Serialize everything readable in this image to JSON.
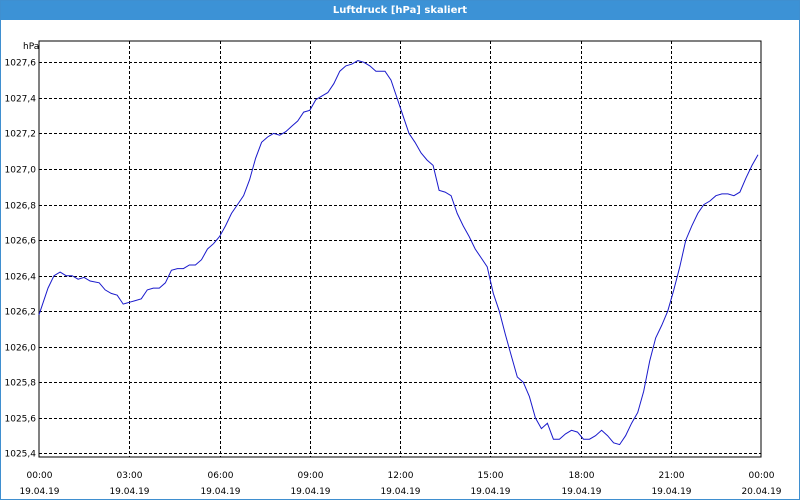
{
  "window": {
    "title": "Luftdruck [hPa] skaliert"
  },
  "colors": {
    "titlebar": "#3c92d6",
    "line": "#1a1acc",
    "grid": "#000000"
  },
  "chart_data": {
    "type": "line",
    "title": "Luftdruck [hPa] skaliert",
    "ylabel": "hPa",
    "xlabel": "",
    "grid": true,
    "ylim": [
      1025.38,
      1027.72
    ],
    "xlim_hours": [
      0,
      24
    ],
    "y_ticks": [
      "1025,4",
      "1025,6",
      "1025,8",
      "1026,0",
      "1026,2",
      "1026,4",
      "1026,6",
      "1026,8",
      "1027,0",
      "1027,2",
      "1027,4",
      "1027,6"
    ],
    "y_tick_values": [
      1025.4,
      1025.6,
      1025.8,
      1026.0,
      1026.2,
      1026.4,
      1026.6,
      1026.8,
      1027.0,
      1027.2,
      1027.4,
      1027.6
    ],
    "x_ticks": [
      {
        "time": "00:00",
        "date": "19.04.19",
        "hour": 0
      },
      {
        "time": "03:00",
        "date": "19.04.19",
        "hour": 3
      },
      {
        "time": "06:00",
        "date": "19.04.19",
        "hour": 6
      },
      {
        "time": "09:00",
        "date": "19.04.19",
        "hour": 9
      },
      {
        "time": "12:00",
        "date": "19.04.19",
        "hour": 12
      },
      {
        "time": "15:00",
        "date": "19.04.19",
        "hour": 15
      },
      {
        "time": "18:00",
        "date": "19.04.19",
        "hour": 18
      },
      {
        "time": "21:00",
        "date": "19.04.19",
        "hour": 21
      },
      {
        "time": "00:00",
        "date": "20.04.19",
        "hour": 24
      }
    ],
    "series": [
      {
        "x": [
          0.0,
          0.3,
          0.5,
          0.7,
          0.9,
          1.1,
          1.3,
          1.5,
          1.7,
          2.0,
          2.2,
          2.4,
          2.6,
          2.8,
          3.0,
          3.2,
          3.4,
          3.6,
          3.8,
          4.0,
          4.2,
          4.4,
          4.6,
          4.8,
          5.0,
          5.2,
          5.4,
          5.6,
          5.8,
          6.0,
          6.2,
          6.4,
          6.6,
          6.8,
          7.0,
          7.2,
          7.4,
          7.6,
          7.8,
          8.0,
          8.2,
          8.4,
          8.6,
          8.8,
          9.0,
          9.2,
          9.4,
          9.6,
          9.8,
          10.0,
          10.2,
          10.4,
          10.6,
          10.8,
          11.0,
          11.2,
          11.5,
          11.7,
          11.9,
          12.1,
          12.3,
          12.5,
          12.7,
          12.9,
          13.1,
          13.3,
          13.5,
          13.7,
          13.9,
          14.1,
          14.3,
          14.5,
          14.7,
          14.9,
          15.1,
          15.3,
          15.5,
          15.7,
          15.9,
          16.1,
          16.3,
          16.5,
          16.7,
          16.9,
          17.1,
          17.3,
          17.5,
          17.7,
          17.9,
          18.1,
          18.3,
          18.5,
          18.7,
          18.9,
          19.1,
          19.3,
          19.5,
          19.7,
          19.9,
          20.1,
          20.3,
          20.5,
          20.7,
          20.9,
          21.1,
          21.3,
          21.5,
          21.7,
          21.9,
          22.1,
          22.3,
          22.5,
          22.7,
          22.9,
          23.1,
          23.3,
          23.5,
          23.7,
          23.9
        ],
        "y": [
          1026.18,
          1026.33,
          1026.4,
          1026.42,
          1026.4,
          1026.4,
          1026.38,
          1026.39,
          1026.37,
          1026.36,
          1026.32,
          1026.3,
          1026.29,
          1026.24,
          1026.25,
          1026.26,
          1026.27,
          1026.32,
          1026.33,
          1026.33,
          1026.36,
          1026.43,
          1026.44,
          1026.44,
          1026.46,
          1026.46,
          1026.49,
          1026.55,
          1026.58,
          1026.62,
          1026.68,
          1026.75,
          1026.8,
          1026.85,
          1026.94,
          1027.06,
          1027.15,
          1027.18,
          1027.2,
          1027.19,
          1027.21,
          1027.24,
          1027.27,
          1027.32,
          1027.33,
          1027.39,
          1027.41,
          1027.43,
          1027.48,
          1027.55,
          1027.58,
          1027.59,
          1027.61,
          1027.6,
          1027.58,
          1027.55,
          1027.55,
          1027.5,
          1027.4,
          1027.3,
          1027.2,
          1027.15,
          1027.09,
          1027.05,
          1027.02,
          1026.88,
          1026.87,
          1026.85,
          1026.75,
          1026.68,
          1026.62,
          1026.55,
          1026.5,
          1026.45,
          1026.3,
          1026.2,
          1026.07,
          1025.95,
          1025.83,
          1025.8,
          1025.72,
          1025.6,
          1025.54,
          1025.57,
          1025.48,
          1025.48,
          1025.51,
          1025.53,
          1025.52,
          1025.48,
          1025.48,
          1025.5,
          1025.53,
          1025.5,
          1025.46,
          1025.45,
          1025.5,
          1025.57,
          1025.63,
          1025.75,
          1025.92,
          1026.05,
          1026.12,
          1026.2,
          1026.32,
          1026.45,
          1026.6,
          1026.68,
          1026.75,
          1026.8,
          1026.82,
          1026.85,
          1026.86,
          1026.86,
          1026.85,
          1026.87,
          1026.95,
          1027.02,
          1027.08
        ]
      }
    ]
  }
}
